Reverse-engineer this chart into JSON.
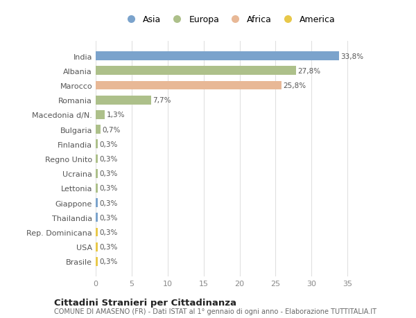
{
  "countries": [
    "India",
    "Albania",
    "Marocco",
    "Romania",
    "Macedonia d/N.",
    "Bulgaria",
    "Finlandia",
    "Regno Unito",
    "Ucraina",
    "Lettonia",
    "Giappone",
    "Thailandia",
    "Rep. Dominicana",
    "USA",
    "Brasile"
  ],
  "values": [
    33.8,
    27.8,
    25.8,
    7.7,
    1.3,
    0.7,
    0.3,
    0.3,
    0.3,
    0.3,
    0.3,
    0.3,
    0.3,
    0.3,
    0.3
  ],
  "labels": [
    "33,8%",
    "27,8%",
    "25,8%",
    "7,7%",
    "1,3%",
    "0,7%",
    "0,3%",
    "0,3%",
    "0,3%",
    "0,3%",
    "0,3%",
    "0,3%",
    "0,3%",
    "0,3%",
    "0,3%"
  ],
  "colors": [
    "#7ba3cc",
    "#adc08a",
    "#e8b896",
    "#adc08a",
    "#adc08a",
    "#adc08a",
    "#adc08a",
    "#adc08a",
    "#adc08a",
    "#adc08a",
    "#7ba3cc",
    "#7ba3cc",
    "#e8c84a",
    "#e8c84a",
    "#e8c84a"
  ],
  "legend_labels": [
    "Asia",
    "Europa",
    "Africa",
    "America"
  ],
  "legend_colors": [
    "#7ba3cc",
    "#adc08a",
    "#e8b896",
    "#e8c84a"
  ],
  "title": "Cittadini Stranieri per Cittadinanza",
  "subtitle": "COMUNE DI AMASENO (FR) - Dati ISTAT al 1° gennaio di ogni anno - Elaborazione TUTTITALIA.IT",
  "xlim": [
    0,
    37
  ],
  "xticks": [
    0,
    5,
    10,
    15,
    20,
    25,
    30,
    35
  ],
  "background_color": "#ffffff",
  "grid_color": "#e0e0e0"
}
